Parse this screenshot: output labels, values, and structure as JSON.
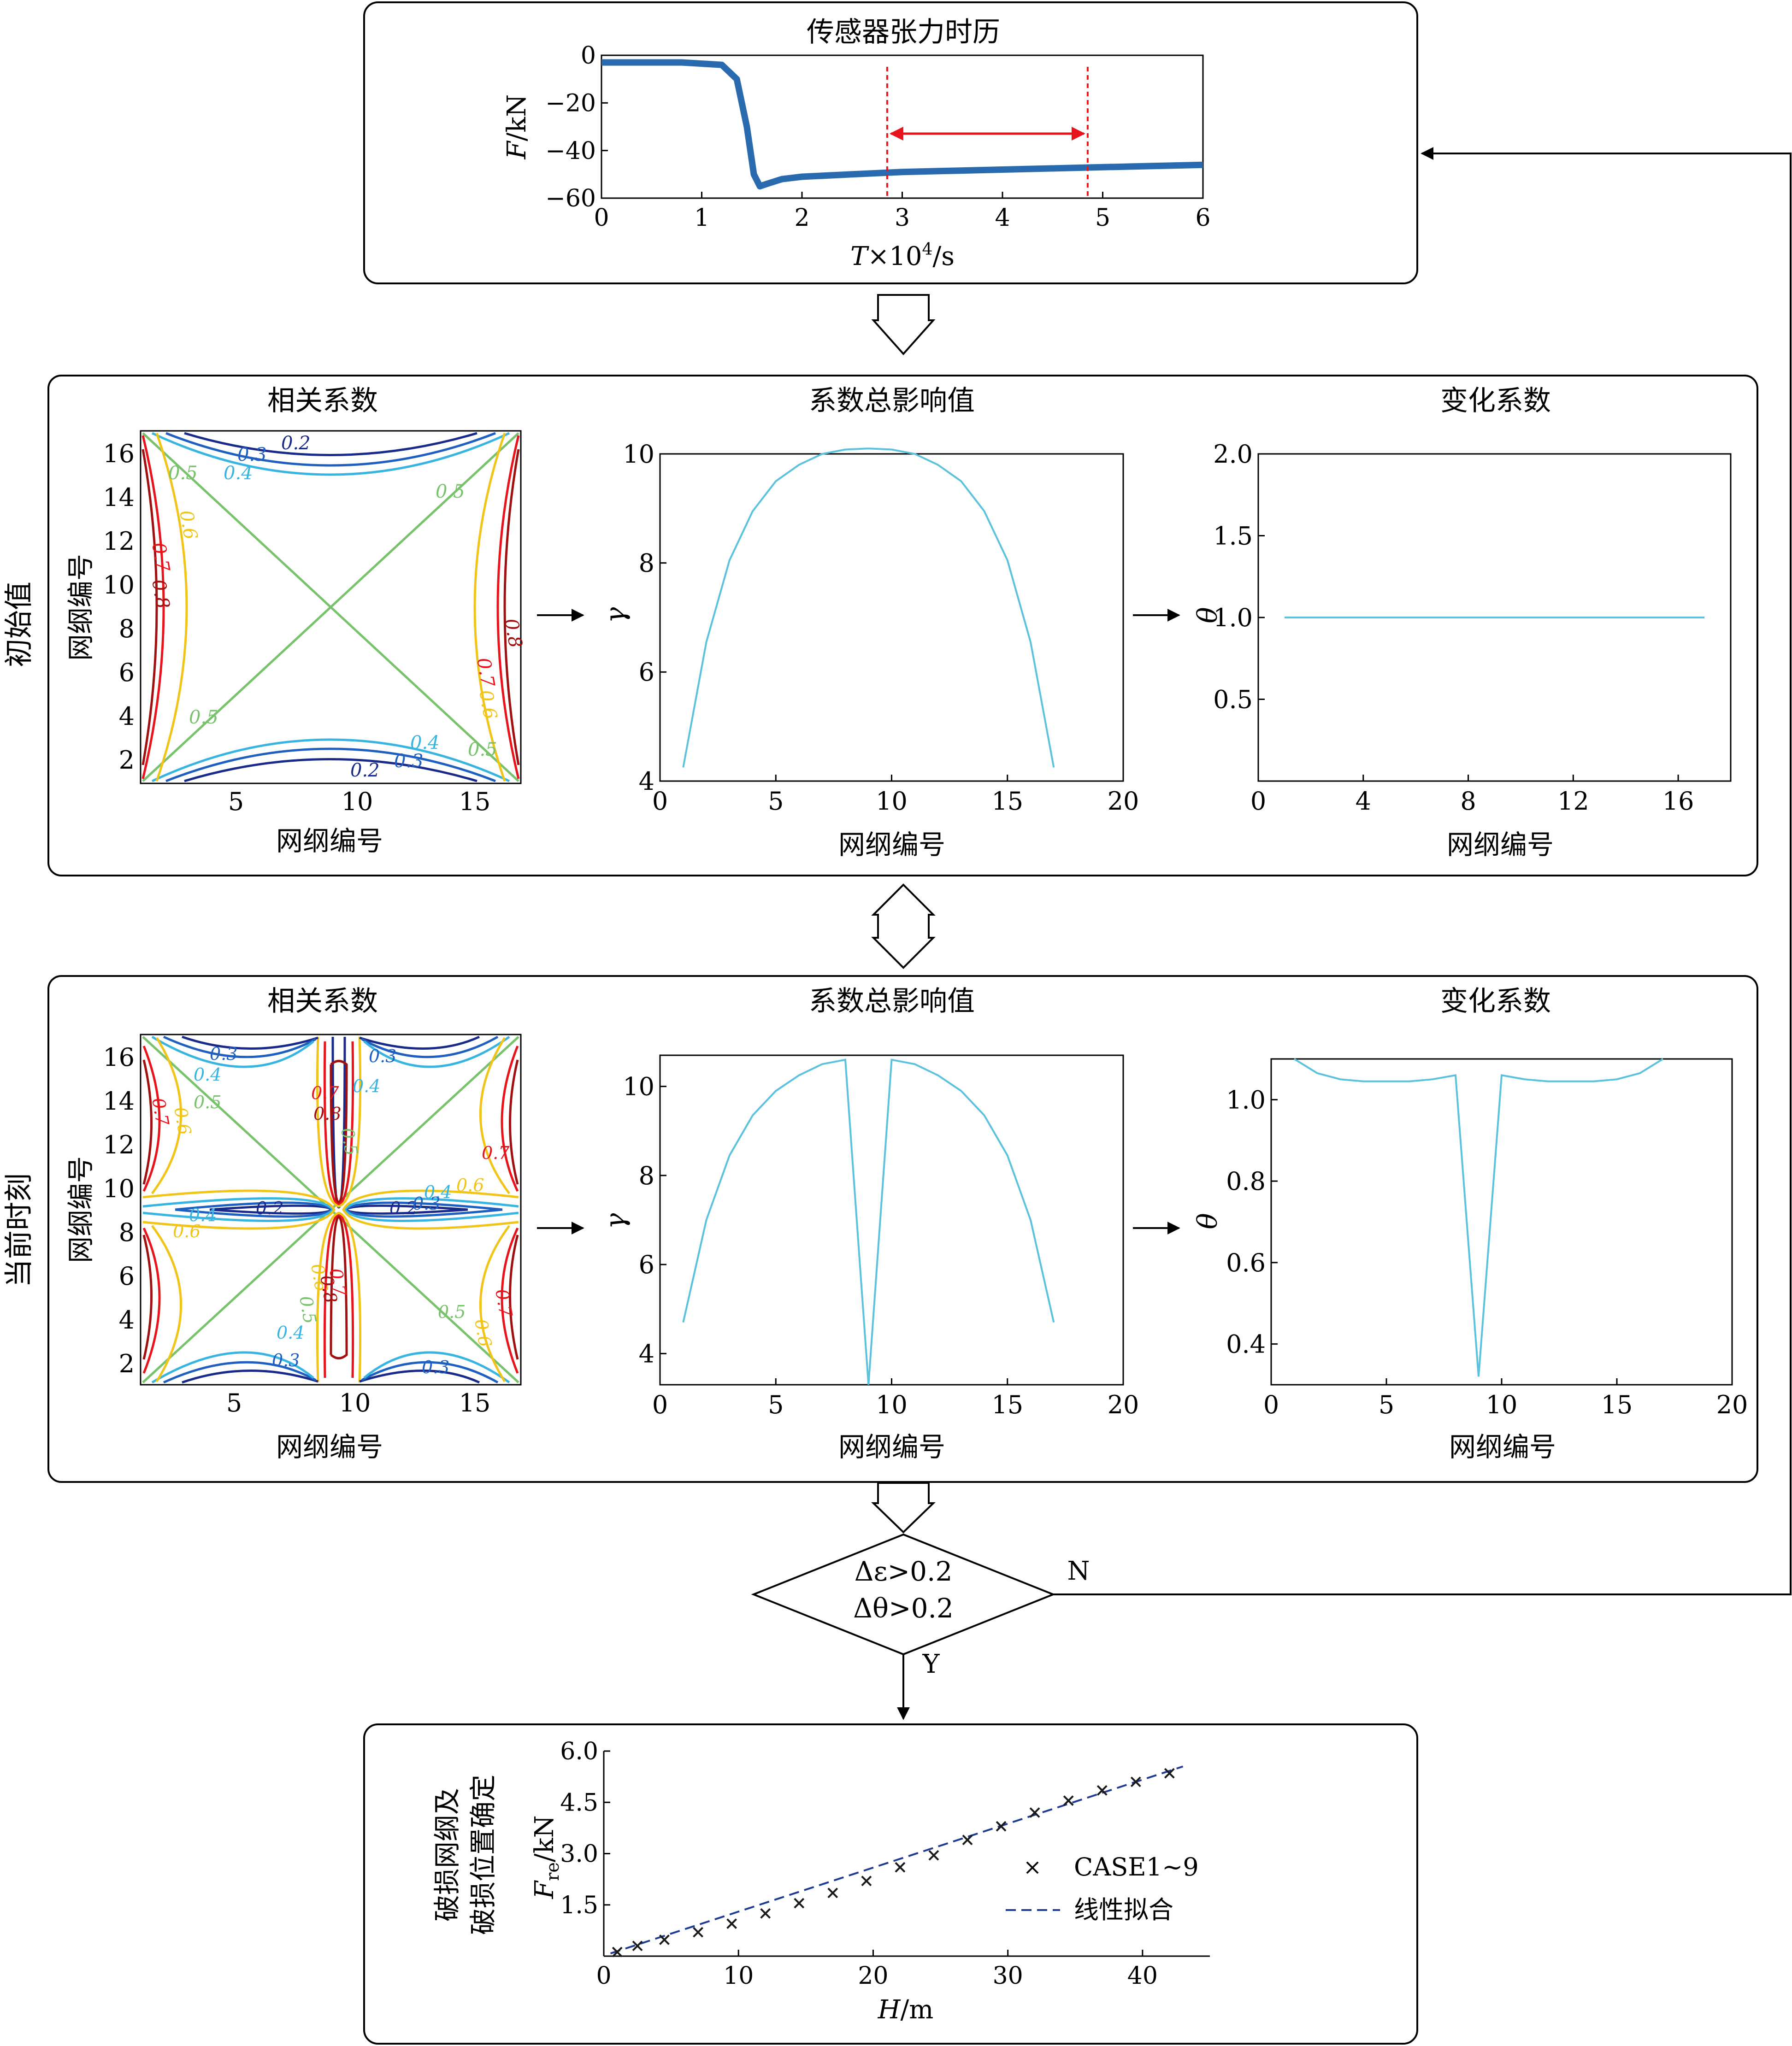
{
  "colors": {
    "line_cyan": "#5bc2dd",
    "sensor_blue": "#2a6bb0",
    "red": "#e8141c",
    "fit_dash": "#1f3a93",
    "contour_levels": {
      "0.2": "#1a2a8a",
      "0.3": "#1f5fc0",
      "0.4": "#38b4e0",
      "0.5": "#77c26a",
      "0.6": "#f0c419",
      "0.7": "#e8141c",
      "0.8": "#a01010"
    }
  },
  "sensor_panel": {
    "title": "传感器张力时历",
    "ylabel_var": "F",
    "ylabel_unit": "/kN",
    "xlabel_var": "T",
    "xlabel_mid": "×10",
    "xlabel_sup": "4",
    "xlabel_unit": "/s",
    "yticks": [
      "0",
      "−20",
      "−40",
      "−60"
    ],
    "xticks": [
      "0",
      "1",
      "2",
      "3",
      "4",
      "5",
      "6"
    ]
  },
  "initial_panel": {
    "row_label": "初始值",
    "corr_title": "相关系数",
    "influence_title": "系数总影响值",
    "change_title": "变化系数",
    "axis_label": "网纲编号",
    "corr_xticks": [
      "5",
      "10",
      "15"
    ],
    "corr_yticks": [
      "2",
      "4",
      "6",
      "8",
      "10",
      "12",
      "14",
      "16"
    ],
    "contour_labels": [
      "0.2",
      "0.3",
      "0.4",
      "0.5",
      "0.6",
      "0.7",
      "0.8",
      "0.2",
      "0.3",
      "0.4",
      "0.5",
      "0.6",
      "0.7",
      "0.8",
      "0.5",
      "0.5",
      "0.5"
    ],
    "gamma_symbol": "γ",
    "gamma_xticks": [
      "0",
      "5",
      "10",
      "15",
      "20"
    ],
    "gamma_yticks": [
      "4",
      "6",
      "8",
      "10"
    ],
    "theta_symbol": "θ",
    "theta_xticks": [
      "0",
      "4",
      "8",
      "12",
      "16"
    ],
    "theta_yticks": [
      "0.5",
      "1.0",
      "1.5",
      "2.0"
    ]
  },
  "current_panel": {
    "row_label": "当前时刻",
    "corr_title": "相关系数",
    "influence_title": "系数总影响值",
    "change_title": "变化系数",
    "axis_label": "网纲编号",
    "corr_xticks": [
      "5",
      "10",
      "15"
    ],
    "corr_yticks": [
      "2",
      "4",
      "6",
      "8",
      "10",
      "12",
      "14",
      "16"
    ],
    "contour_labels": [
      "0.3",
      "0.4",
      "0.5",
      "0.7",
      "0.6",
      "0.3",
      "0.4",
      "0.7",
      "0.8",
      "0.5",
      "0.7",
      "0.6",
      "0.4",
      "0.5",
      "0.2",
      "0.4",
      "0.6",
      "0.2",
      "0.3",
      "0.4",
      "0.3",
      "0.7",
      "0.6",
      "0.5",
      "0.6",
      "0.8",
      "0.7",
      "0.5",
      "0.4",
      "0.3",
      "0.5",
      "0.6",
      "0.7",
      "0.3",
      "0.4",
      "0.2"
    ],
    "gamma_symbol": "γ",
    "gamma_xticks": [
      "0",
      "5",
      "10",
      "15",
      "20"
    ],
    "gamma_yticks": [
      "4",
      "6",
      "8",
      "10"
    ],
    "theta_symbol": "θ",
    "theta_xticks": [
      "0",
      "5",
      "10",
      "15",
      "20"
    ],
    "theta_yticks": [
      "0.4",
      "0.6",
      "0.8",
      "1.0"
    ]
  },
  "decision": {
    "line1": "Δε>0.2",
    "line2": "Δθ>0.2",
    "no_label": "N",
    "yes_label": "Y"
  },
  "result_panel": {
    "side_line1": "破损网纲及",
    "side_line2": "破损位置确定",
    "ylabel_var": "F",
    "ylabel_sub": "re",
    "ylabel_unit": "/kN",
    "xlabel_var": "H",
    "xlabel_unit": "/m",
    "legend_markers": "CASE1~9",
    "legend_fit": "线性拟合",
    "xticks": [
      "0",
      "10",
      "20",
      "30",
      "40"
    ],
    "yticks": [
      "1.5",
      "3.0",
      "4.5",
      "6.0"
    ]
  },
  "chart_data": [
    {
      "id": "sensor",
      "type": "line",
      "title": "传感器张力时历",
      "xlabel": "T×10^4/s",
      "ylabel": "F/kN",
      "xlim": [
        0,
        6
      ],
      "ylim": [
        -60,
        0
      ],
      "series": [
        {
          "x": [
            0,
            0.4,
            0.8,
            1.2,
            1.35,
            1.45,
            1.52,
            1.58,
            1.65,
            1.8,
            2.0,
            2.5,
            3.0,
            3.5,
            4.0,
            4.5,
            5.0,
            5.5,
            6.0
          ],
          "y": [
            -3,
            -3,
            -3,
            -4,
            -10,
            -30,
            -50,
            -55,
            -54,
            -52,
            -51,
            -50,
            -49,
            -48.5,
            -48,
            -47.5,
            -47,
            -46.5,
            -46
          ]
        }
      ],
      "window_lines_x": [
        2.85,
        4.85
      ]
    },
    {
      "id": "gamma_initial",
      "type": "line",
      "xlabel": "网纲编号",
      "ylabel": "γ",
      "xlim": [
        0,
        20
      ],
      "ylim": [
        4,
        10
      ],
      "series": [
        {
          "x": [
            1,
            2,
            3,
            4,
            5,
            6,
            7,
            8,
            9,
            10,
            11,
            12,
            13,
            14,
            15,
            16,
            17
          ],
          "y": [
            4.25,
            6.55,
            8.05,
            8.95,
            9.5,
            9.8,
            10.0,
            10.08,
            10.1,
            10.08,
            10.0,
            9.8,
            9.5,
            8.95,
            8.05,
            6.55,
            4.25
          ]
        }
      ]
    },
    {
      "id": "theta_initial",
      "type": "line",
      "xlabel": "网纲编号",
      "ylabel": "θ",
      "xlim": [
        0,
        18
      ],
      "ylim": [
        0,
        2
      ],
      "series": [
        {
          "x": [
            1,
            17
          ],
          "y": [
            1.0,
            1.0
          ]
        }
      ]
    },
    {
      "id": "gamma_current",
      "type": "line",
      "xlabel": "网纲编号",
      "ylabel": "γ",
      "xlim": [
        0,
        20
      ],
      "ylim": [
        3.3,
        10.7
      ],
      "series": [
        {
          "x": [
            1,
            2,
            3,
            4,
            5,
            6,
            7,
            8,
            9,
            10,
            11,
            12,
            13,
            14,
            15,
            16,
            17
          ],
          "y": [
            4.7,
            7.0,
            8.45,
            9.35,
            9.9,
            10.25,
            10.5,
            10.6,
            3.3,
            10.6,
            10.5,
            10.25,
            9.9,
            9.35,
            8.45,
            7.0,
            4.7
          ]
        }
      ]
    },
    {
      "id": "theta_current",
      "type": "line",
      "xlabel": "网纲编号",
      "ylabel": "θ",
      "xlim": [
        0,
        20
      ],
      "ylim": [
        0.3,
        1.1
      ],
      "series": [
        {
          "x": [
            1,
            2,
            3,
            4,
            5,
            6,
            7,
            8,
            9,
            10,
            11,
            12,
            13,
            14,
            15,
            16,
            17
          ],
          "y": [
            1.1,
            1.065,
            1.05,
            1.045,
            1.045,
            1.045,
            1.05,
            1.06,
            0.32,
            1.06,
            1.05,
            1.045,
            1.045,
            1.045,
            1.05,
            1.065,
            1.1
          ]
        }
      ]
    },
    {
      "id": "result",
      "type": "scatter",
      "xlabel": "H/m",
      "ylabel": "Fre/kN",
      "xlim": [
        0,
        45
      ],
      "ylim": [
        0,
        6
      ],
      "series": [
        {
          "name": "CASE1~9",
          "x": [
            1,
            2.5,
            4.5,
            7,
            9.5,
            12,
            14.5,
            17,
            19.5,
            22,
            24.5,
            27,
            29.5,
            32,
            34.5,
            37,
            39.5,
            42
          ],
          "y": [
            0.12,
            0.3,
            0.48,
            0.7,
            0.95,
            1.25,
            1.55,
            1.85,
            2.2,
            2.6,
            2.95,
            3.4,
            3.8,
            4.2,
            4.55,
            4.85,
            5.1,
            5.35
          ]
        },
        {
          "name": "线性拟合",
          "x": [
            0.5,
            43
          ],
          "y": [
            0.08,
            5.55
          ]
        }
      ]
    }
  ]
}
